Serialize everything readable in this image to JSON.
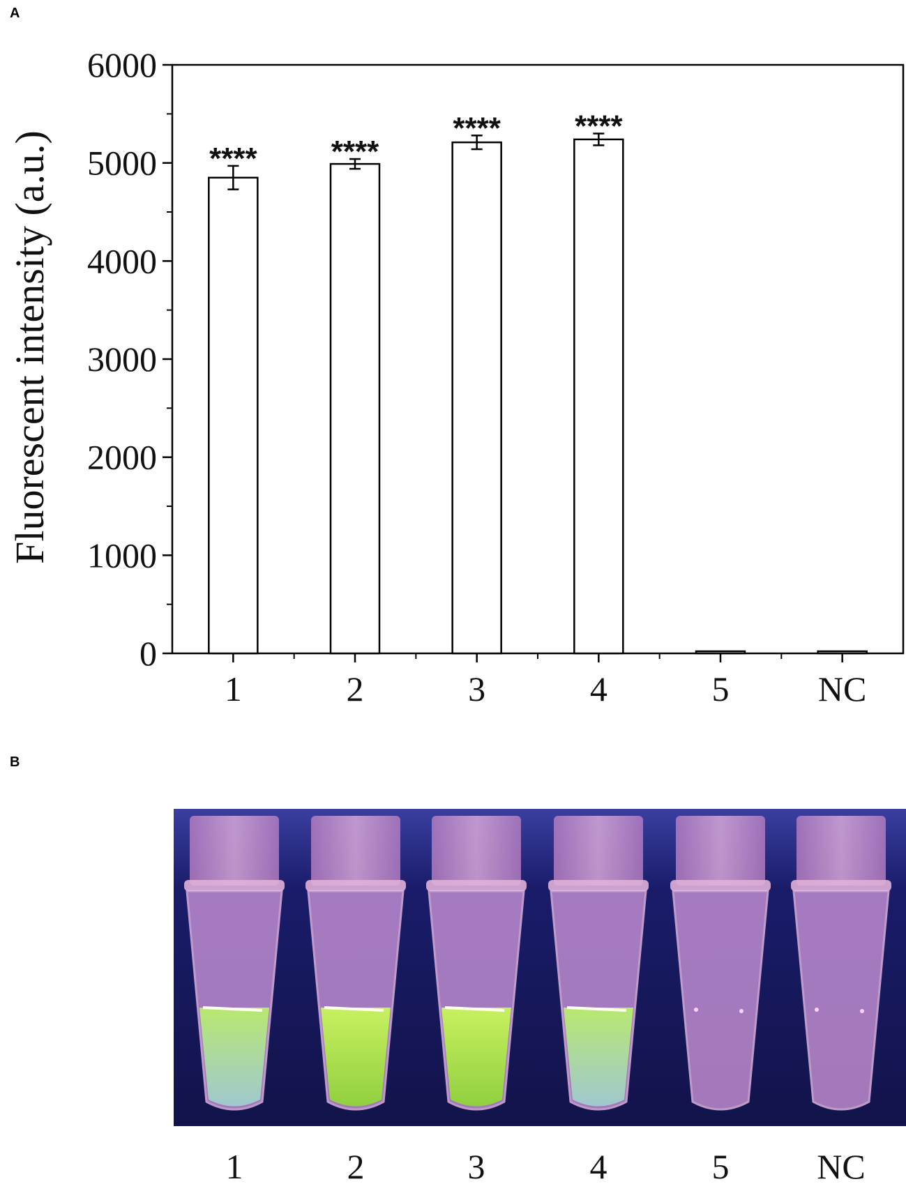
{
  "panel_a": {
    "label": "A"
  },
  "panel_b": {
    "label": "B",
    "tube_labels": [
      "1",
      "2",
      "3",
      "4",
      "5",
      "NC"
    ]
  },
  "chart_data": {
    "type": "bar",
    "title": "",
    "xlabel": "",
    "ylabel": "Fluorescent intensity (a.u.)",
    "categories": [
      "1",
      "2",
      "3",
      "4",
      "5",
      "NC"
    ],
    "values": [
      4850,
      4990,
      5210,
      5240,
      15,
      12
    ],
    "errors": [
      120,
      50,
      70,
      60,
      0,
      0
    ],
    "significance": [
      "****",
      "****",
      "****",
      "****",
      "",
      ""
    ],
    "ylim": [
      0,
      6000
    ],
    "yticks": [
      "0",
      "1000",
      "2000",
      "3000",
      "4000",
      "5000",
      "6000"
    ],
    "grid": false,
    "bar_fill": "#ffffff",
    "bar_stroke": "#000000"
  },
  "photo_colors": {
    "background": "#1c1d6b",
    "tube_shell": "#c890c8",
    "positive_fluorescence": "#a8e040",
    "negative_liquid": "#b090d0"
  }
}
